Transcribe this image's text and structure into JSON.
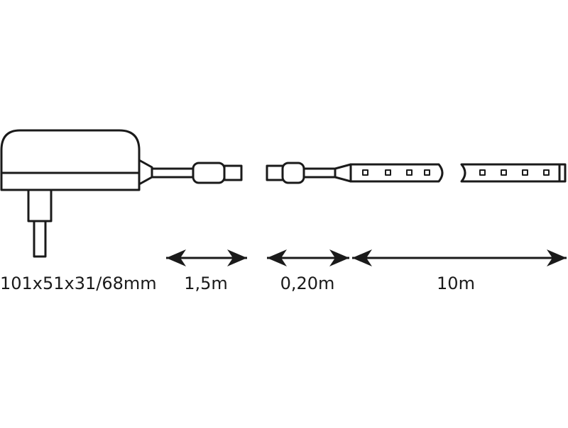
{
  "diagram": {
    "labels": {
      "adapter_size": "101x51x31/68mm",
      "cable_length": "1,5m",
      "connector_length": "0,20m",
      "strip_length": "10m"
    },
    "colors": {
      "stroke": "#1a1a1a",
      "background": "#ffffff"
    }
  }
}
